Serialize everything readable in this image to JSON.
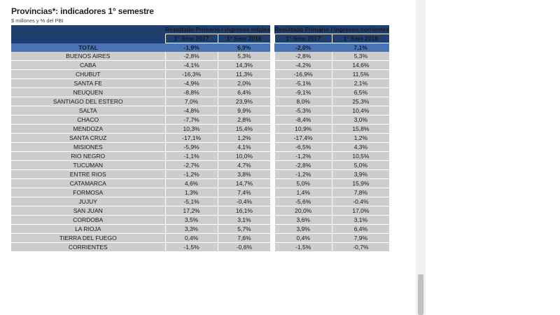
{
  "title": "Provincias*: indicadores 1° semestre",
  "subtitle": "$ millones y % del PBI",
  "header": {
    "group1": "Resultado Primario / ingresos totales",
    "group2": "Resultado Primario / ingresos corrientes",
    "sub": [
      "1° Sem 2017",
      "1° Sem 2018",
      "1° Sem 2017",
      "1° Sem 2018"
    ]
  },
  "total": {
    "name": "TOTAL",
    "values": [
      "-1,9%",
      "6,9%",
      "-2,0%",
      "7,1%"
    ]
  },
  "rows": [
    {
      "name": "BUENOS AIRES",
      "values": [
        "-2,8%",
        "5,3%",
        "-2,8%",
        "5,3%"
      ]
    },
    {
      "name": "CABA",
      "values": [
        "-4,1%",
        "14,3%",
        "-4,2%",
        "14,6%"
      ]
    },
    {
      "name": "CHUBUT",
      "values": [
        "-16,3%",
        "11,3%",
        "-16,9%",
        "11,5%"
      ]
    },
    {
      "name": "SANTA FE",
      "values": [
        "-4,9%",
        "2,0%",
        "-5,1%",
        "2,1%"
      ]
    },
    {
      "name": "NEUQUEN",
      "values": [
        "-8,8%",
        "6,4%",
        "-9,1%",
        "6,5%"
      ]
    },
    {
      "name": "SANTIAGO DEL ESTERO",
      "values": [
        "7,0%",
        "23,9%",
        "8,0%",
        "25,3%"
      ]
    },
    {
      "name": "SALTA",
      "values": [
        "-4,8%",
        "9,9%",
        "-5,3%",
        "10,4%"
      ]
    },
    {
      "name": "CHACO",
      "values": [
        "-7,7%",
        "2,8%",
        "-8,4%",
        "3,0%"
      ]
    },
    {
      "name": "MENDOZA",
      "values": [
        "10,3%",
        "15,4%",
        "10,9%",
        "15,8%"
      ]
    },
    {
      "name": "SANTA CRUZ",
      "values": [
        "-17,1%",
        "1,2%",
        "-17,4%",
        "1,2%"
      ]
    },
    {
      "name": "MISIONES",
      "values": [
        "-5,9%",
        "4,1%",
        "-6,5%",
        "4,3%"
      ]
    },
    {
      "name": "RIO NEGRO",
      "values": [
        "-1,1%",
        "10,0%",
        "-1,2%",
        "10,5%"
      ]
    },
    {
      "name": "TUCUMAN",
      "values": [
        "-2,7%",
        "4,7%",
        "-2,8%",
        "5,0%"
      ]
    },
    {
      "name": "ENTRE RIOS",
      "values": [
        "-1,2%",
        "3,8%",
        "-1,2%",
        "3,9%"
      ]
    },
    {
      "name": "CATAMARCA",
      "values": [
        "4,6%",
        "14,7%",
        "5,0%",
        "15,9%"
      ]
    },
    {
      "name": "FORMOSA",
      "values": [
        "1,3%",
        "7,4%",
        "1,4%",
        "7,8%"
      ]
    },
    {
      "name": "JUJUY",
      "values": [
        "-5,1%",
        "-0,4%",
        "-5,6%",
        "-0,4%"
      ]
    },
    {
      "name": "SAN JUAN",
      "values": [
        "17,2%",
        "16,1%",
        "20,0%",
        "17,0%"
      ]
    },
    {
      "name": "CORDOBA",
      "values": [
        "3,5%",
        "3,1%",
        "3,6%",
        "3,1%"
      ]
    },
    {
      "name": "LA RIOJA",
      "values": [
        "3,3%",
        "5,7%",
        "3,9%",
        "6,4%"
      ]
    },
    {
      "name": "TIERRA DEL FUEGO",
      "values": [
        "0,4%",
        "7,6%",
        "0,4%",
        "7,9%"
      ]
    },
    {
      "name": "CORRIENTES",
      "values": [
        "-1,5%",
        "-0,6%",
        "-1,5%",
        "-0,7%"
      ]
    }
  ]
}
